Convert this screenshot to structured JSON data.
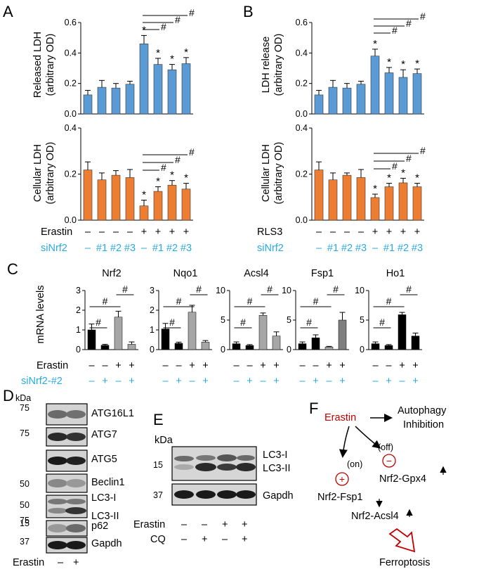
{
  "colors": {
    "blue_bar": "#5b9bd5",
    "orange_bar": "#ed7d31",
    "cyan": "#29abe2",
    "red": "#c00000",
    "grey_bar": "#a6a6a6",
    "black_bar": "#000000"
  },
  "panels": {
    "A": "A",
    "B": "B",
    "C": "C",
    "D": "D",
    "E": "E",
    "F": "F"
  },
  "panelA": {
    "top_ylabel_1": "Released LDH",
    "top_ylabel_2": "(arbitrary OD)",
    "bottom_ylabel_1": "Cellular LDH",
    "bottom_ylabel_2": "(arbitrary OD)",
    "row1_label": "Erastin",
    "row1_values": [
      "–",
      "–",
      "–",
      "–",
      "+",
      "+",
      "+",
      "+"
    ],
    "row2_label": "siNrf2",
    "row2_values": [
      "–",
      "#1",
      "#2",
      "#3",
      "–",
      "#1",
      "#2",
      "#3"
    ]
  },
  "panelB": {
    "top_ylabel_1": "LDH release",
    "top_ylabel_2": "(arbitrary OD)",
    "bottom_ylabel_1": "Cellular LDH",
    "bottom_ylabel_2": "(arbitrary OD)",
    "row1_label": "RLS3",
    "row1_values": [
      "–",
      "–",
      "–",
      "–",
      "+",
      "+",
      "+",
      "+"
    ],
    "row2_label": "siNrf2",
    "row2_values": [
      "–",
      "#1",
      "#2",
      "#3",
      "–",
      "#1",
      "#2",
      "#3"
    ]
  },
  "panelC": {
    "ylabel": "mRNA levels",
    "row1_label": "Erastin",
    "row1_values": [
      "–",
      "–",
      "+",
      "+"
    ],
    "row2_label": "siNrf2-#2",
    "row2_values": [
      "–",
      "+",
      "–",
      "+"
    ]
  },
  "annot": {
    "star": "*",
    "hash": "#"
  },
  "chart_data": [
    {
      "type": "bar",
      "panel": "A-top",
      "ylabel": "Released LDH (arbitrary OD)",
      "ylim": [
        0,
        0.6
      ],
      "yticks": [
        "0.0",
        "0.2",
        "0.4",
        "0.6"
      ],
      "values": [
        0.125,
        0.175,
        0.17,
        0.195,
        0.46,
        0.325,
        0.29,
        0.33
      ],
      "errors": [
        0.03,
        0.045,
        0.03,
        0.02,
        0.055,
        0.04,
        0.035,
        0.04
      ],
      "stars": [
        false,
        false,
        false,
        false,
        true,
        true,
        true,
        true
      ],
      "color": "#5b9bd5"
    },
    {
      "type": "bar",
      "panel": "A-bottom",
      "ylabel": "Cellular LDH (arbitrary OD)",
      "ylim": [
        0,
        0.4
      ],
      "yticks": [
        "0.0",
        "0.2",
        "0.4"
      ],
      "values": [
        0.218,
        0.175,
        0.195,
        0.185,
        0.062,
        0.125,
        0.152,
        0.135
      ],
      "errors": [
        0.035,
        0.03,
        0.02,
        0.035,
        0.025,
        0.02,
        0.02,
        0.025
      ],
      "stars": [
        false,
        false,
        false,
        false,
        true,
        true,
        true,
        true
      ],
      "color": "#ed7d31"
    },
    {
      "type": "bar",
      "panel": "B-top",
      "ylabel": "LDH release (arbitrary OD)",
      "ylim": [
        0,
        0.6
      ],
      "yticks": [
        "0.0",
        "0.2",
        "0.4",
        "0.6"
      ],
      "values": [
        0.125,
        0.175,
        0.17,
        0.195,
        0.38,
        0.27,
        0.24,
        0.265
      ],
      "errors": [
        0.03,
        0.045,
        0.03,
        0.02,
        0.045,
        0.035,
        0.05,
        0.03
      ],
      "stars": [
        false,
        false,
        false,
        false,
        true,
        true,
        true,
        true
      ],
      "color": "#5b9bd5"
    },
    {
      "type": "bar",
      "panel": "B-bottom",
      "ylabel": "Cellular LDH (arbitrary OD)",
      "ylim": [
        0,
        0.4
      ],
      "yticks": [
        "0.0",
        "0.2",
        "0.4"
      ],
      "values": [
        0.218,
        0.175,
        0.195,
        0.185,
        0.098,
        0.145,
        0.162,
        0.145
      ],
      "errors": [
        0.035,
        0.03,
        0.01,
        0.035,
        0.015,
        0.015,
        0.02,
        0.015
      ],
      "stars": [
        false,
        false,
        false,
        false,
        true,
        true,
        true,
        true
      ],
      "color": "#ed7d31"
    },
    {
      "type": "bar",
      "panel": "C",
      "title": "Nrf2",
      "ylim": [
        0,
        3
      ],
      "yticks": [
        "0",
        "1",
        "2",
        "3"
      ],
      "values": [
        1.0,
        0.22,
        1.65,
        0.27
      ],
      "errors": [
        0.3,
        0.05,
        0.3,
        0.12
      ],
      "colors": [
        "#000000",
        "#000000",
        "#a6a6a6",
        "#a6a6a6"
      ]
    },
    {
      "type": "bar",
      "panel": "C",
      "title": "Nqo1",
      "ylim": [
        0,
        3
      ],
      "yticks": [
        "0",
        "1",
        "2",
        "3"
      ],
      "values": [
        1.05,
        0.32,
        1.9,
        0.38
      ],
      "errors": [
        0.28,
        0.06,
        0.35,
        0.08
      ],
      "colors": [
        "#000000",
        "#000000",
        "#a6a6a6",
        "#a6a6a6"
      ]
    },
    {
      "type": "bar",
      "panel": "C",
      "title": "Acsl4",
      "ylim": [
        0,
        10
      ],
      "yticks": [
        "0",
        "5",
        "10"
      ],
      "values": [
        1.0,
        0.7,
        5.8,
        2.3
      ],
      "errors": [
        0.3,
        0.15,
        0.4,
        0.7
      ],
      "colors": [
        "#000000",
        "#000000",
        "#a6a6a6",
        "#a6a6a6"
      ]
    },
    {
      "type": "bar",
      "panel": "C",
      "title": "Fsp1",
      "ylim": [
        0,
        10
      ],
      "yticks": [
        "0",
        "5",
        "10"
      ],
      "values": [
        1.0,
        2.0,
        0.45,
        5.0
      ],
      "errors": [
        0.3,
        0.5,
        0.1,
        1.3
      ],
      "colors": [
        "#000000",
        "#000000",
        "#a6a6a6",
        "#7f7f7f"
      ]
    },
    {
      "type": "bar",
      "panel": "C",
      "title": "Ho1",
      "ylim": [
        0,
        10
      ],
      "yticks": [
        "0",
        "5",
        "10"
      ],
      "values": [
        1.0,
        0.7,
        5.9,
        2.3
      ],
      "errors": [
        0.3,
        0.15,
        0.4,
        0.5
      ],
      "colors": [
        "#000000",
        "#000000",
        "#000000",
        "#000000"
      ]
    }
  ],
  "panelD": {
    "kda": "kDa",
    "markers": [
      "75",
      "75",
      "",
      "50",
      "50",
      "15",
      "75",
      "37"
    ],
    "labels": [
      "ATG16L1",
      "ATG7",
      "ATG5",
      "Beclin1",
      "LC3-I",
      "LC3-II",
      "p62",
      "Gapdh"
    ],
    "erastin_label": "Erastin",
    "erastin_values": [
      "–",
      "+"
    ]
  },
  "panelE": {
    "kda": "kDa",
    "marker_15": "15",
    "marker_37": "37",
    "labels": [
      "LC3-I",
      "LC3-II",
      "Gapdh"
    ],
    "row1_label": "Erastin",
    "row1_values": [
      "–",
      "–",
      "+",
      "+"
    ],
    "row2_label": "CQ",
    "row2_values": [
      "–",
      "+",
      "–",
      "+"
    ]
  },
  "panelF": {
    "erastin": "Erastin",
    "autophagy_1": "Autophagy",
    "autophagy_2": "Inhibition",
    "on": "(on)",
    "off": "(off)",
    "plus": "+",
    "minus": "−",
    "gpx4": "Nrf2-Gpx4",
    "fsp1": "Nrf2-Fsp1",
    "acsl4": "Nrf2-Acsl4",
    "ferroptosis": "Ferroptosis"
  }
}
